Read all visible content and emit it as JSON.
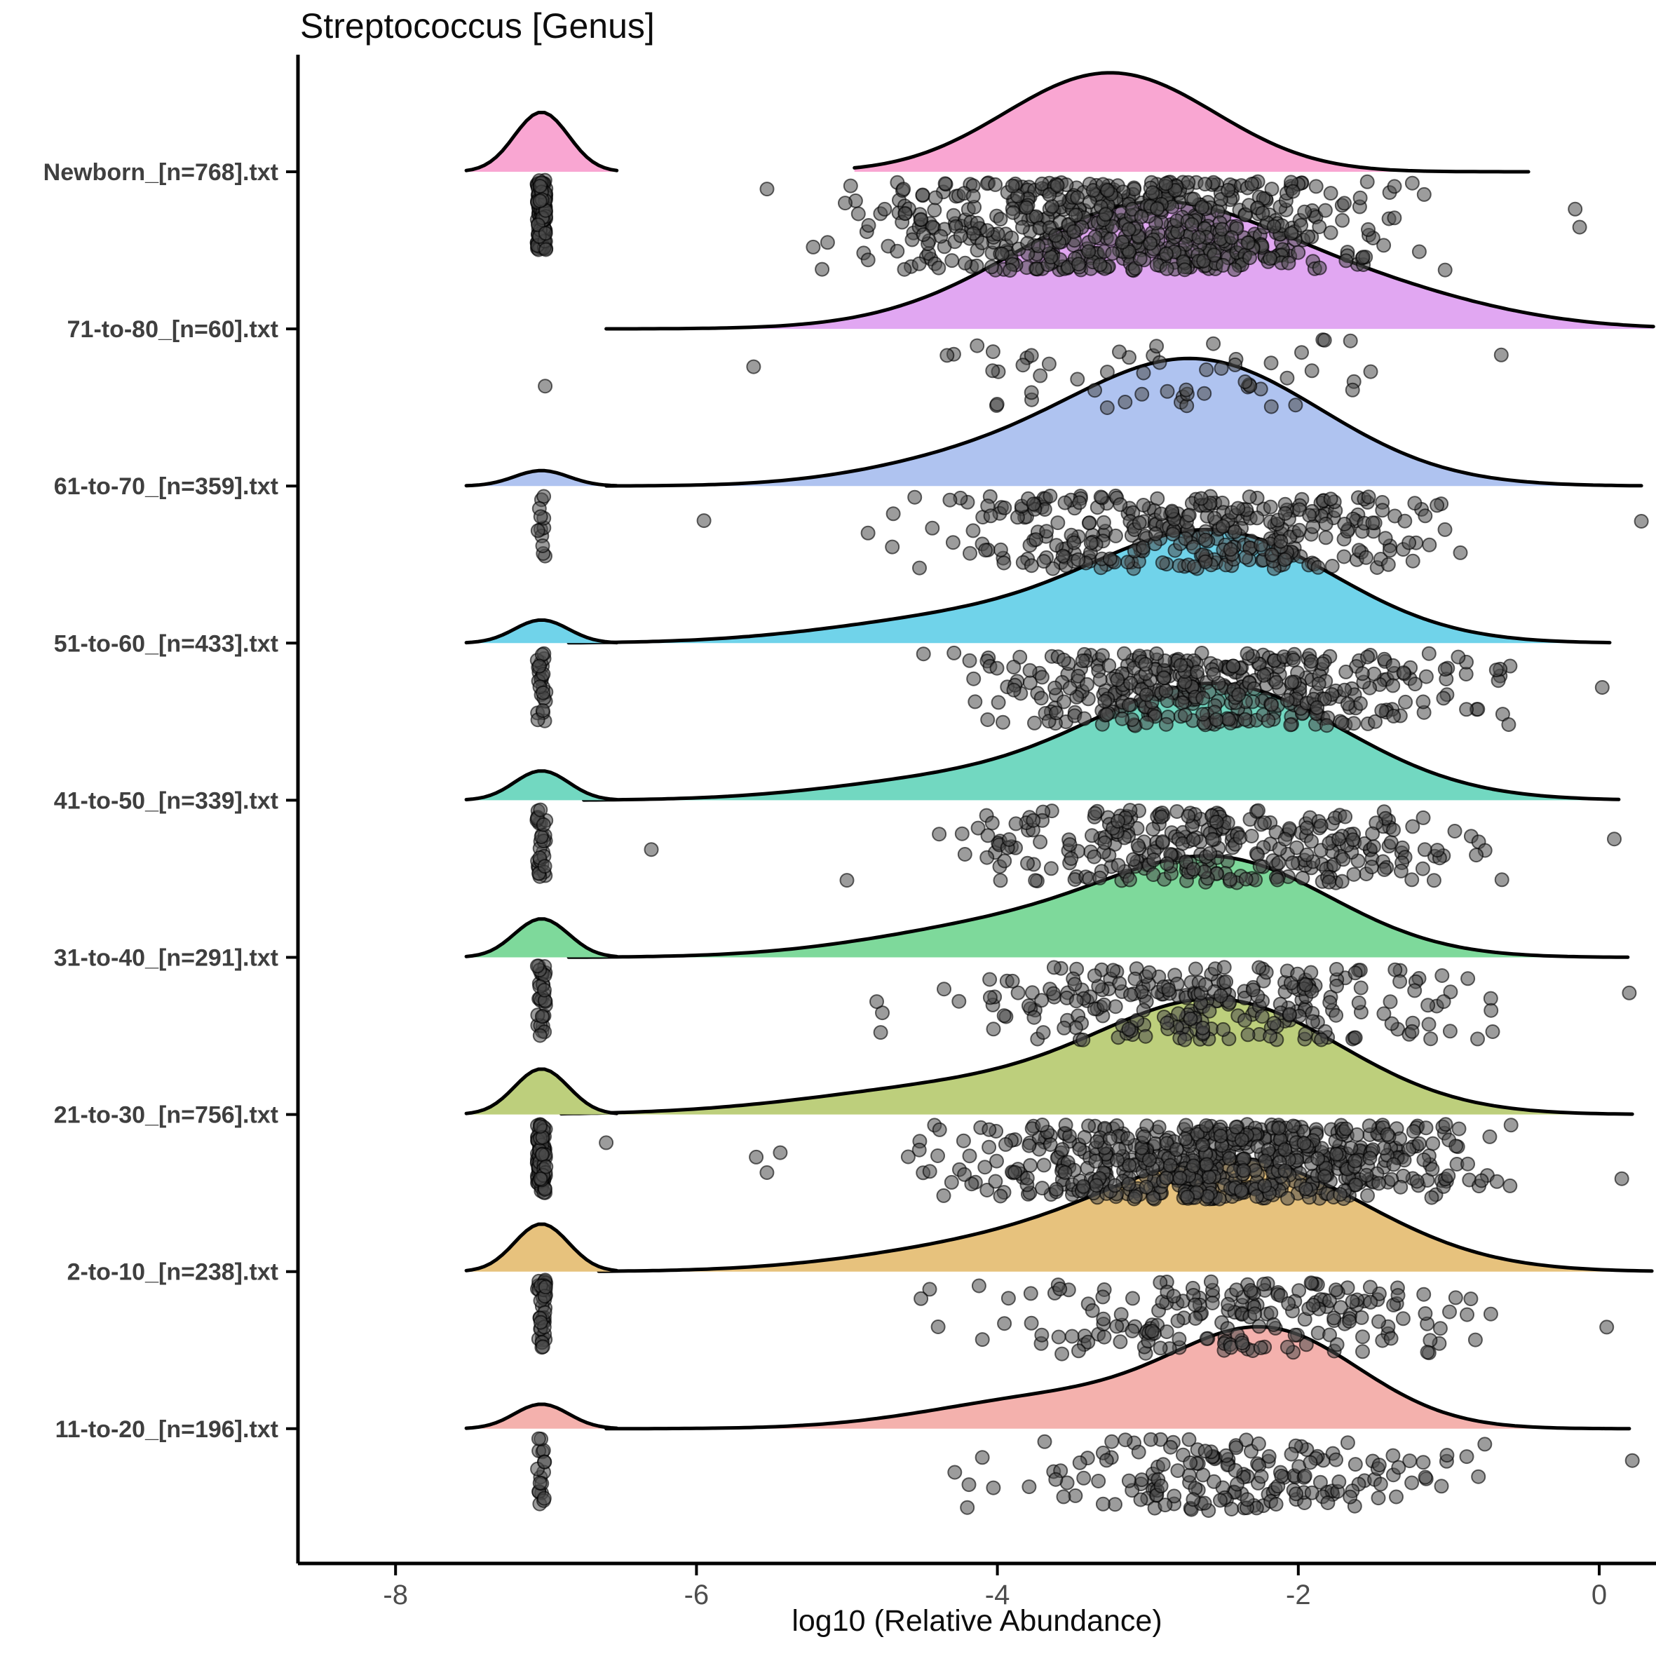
{
  "title": "Streptococcus [Genus]",
  "chart_data": {
    "type": "ridgeline",
    "title": "Streptococcus [Genus]",
    "xlabel": "log10 (Relative Abundance)",
    "x_ticks": [
      -8,
      -6,
      -4,
      -2,
      0
    ],
    "x_range": [
      -8.65,
      0.38
    ],
    "grid": false,
    "legend": "none",
    "outline_color": "#000000",
    "axis_color": "#000000",
    "tick_label_color": "#4d4d4d",
    "y_label_color": "#3f3f3f",
    "point_style": {
      "radius": 9.5,
      "fill": "#4a4a4a",
      "fill_opacity": 0.55,
      "stroke": "#000000",
      "stroke_opacity": 0.6,
      "stroke_width": 2
    },
    "categories": [
      "Newborn_[n=768].txt",
      "71-to-80_[n=60].txt",
      "61-to-70_[n=359].txt",
      "51-to-60_[n=433].txt",
      "41-to-50_[n=339].txt",
      "31-to-40_[n=291].txt",
      "21-to-30_[n=756].txt",
      "2-to-10_[n=238].txt",
      "11-to-20_[n=196].txt"
    ],
    "rows": [
      {
        "label": "Newborn_[n=768].txt",
        "n": 768,
        "color": "#F9A6D2",
        "density": {
          "range": [
            -4.95,
            -0.45
          ],
          "components": [
            {
              "mu": -3.55,
              "sd": 0.6,
              "h": 80
            },
            {
              "mu": -2.95,
              "sd": 0.6,
              "h": 80
            }
          ]
        },
        "zero_spike": {
          "center": -7.03,
          "sd": 0.18,
          "height": 85,
          "points": 130
        },
        "scatter": {
          "mu": -3.15,
          "sd": 0.85,
          "min": -5.95,
          "max": -0.8,
          "count": 636,
          "band": 145,
          "outliers": [
            -0.16,
            -0.13
          ]
        }
      },
      {
        "label": "71-to-80_[n=60].txt",
        "n": 60,
        "color": "#E1A7F2",
        "density": {
          "range": [
            -6.6,
            0.38
          ],
          "components": [
            {
              "mu": -3.0,
              "sd": 0.9,
              "h": 175
            },
            {
              "mu": -1.45,
              "sd": 0.8,
              "h": 40
            }
          ]
        },
        "zero_spike": {
          "center": -7.03,
          "sd": 0.18,
          "height": 0,
          "points": 1
        },
        "scatter": {
          "mu": -2.8,
          "sd": 0.85,
          "min": -4.9,
          "max": -0.5,
          "count": 57,
          "band": 120,
          "outliers": [
            -5.62
          ]
        }
      },
      {
        "label": "61-to-70_[n=359].txt",
        "n": 359,
        "color": "#AFC3F0",
        "density": {
          "range": [
            -6.6,
            0.3
          ],
          "components": [
            {
              "mu": -2.7,
              "sd": 0.85,
              "h": 180
            },
            {
              "mu": -4.3,
              "sd": 0.7,
              "h": 25
            }
          ]
        },
        "zero_spike": {
          "center": -7.03,
          "sd": 0.18,
          "height": 22,
          "points": 12
        },
        "scatter": {
          "mu": -2.65,
          "sd": 0.8,
          "min": -6.0,
          "max": -0.6,
          "count": 344,
          "band": 122,
          "outliers": [
            -5.95,
            0.28
          ]
        }
      },
      {
        "label": "51-to-60_[n=433].txt",
        "n": 433,
        "color": "#70D3EA",
        "density": {
          "range": [
            -6.85,
            0.1
          ],
          "components": [
            {
              "mu": -2.55,
              "sd": 0.8,
              "h": 155
            },
            {
              "mu": -4.2,
              "sd": 0.9,
              "h": 35
            }
          ]
        },
        "zero_spike": {
          "center": -7.03,
          "sd": 0.18,
          "height": 33,
          "points": 26
        },
        "scatter": {
          "mu": -2.55,
          "sd": 0.8,
          "min": -5.6,
          "max": -0.45,
          "count": 404,
          "band": 122,
          "outliers": [
            0.02
          ]
        }
      },
      {
        "label": "41-to-50_[n=339].txt",
        "n": 339,
        "color": "#72D8C1",
        "density": {
          "range": [
            -6.75,
            0.15
          ],
          "components": [
            {
              "mu": -2.55,
              "sd": 0.85,
              "h": 165
            },
            {
              "mu": -4.4,
              "sd": 0.8,
              "h": 25
            }
          ]
        },
        "zero_spike": {
          "center": -7.03,
          "sd": 0.18,
          "height": 42,
          "points": 30
        },
        "scatter": {
          "mu": -2.55,
          "sd": 0.85,
          "min": -5.7,
          "max": -0.55,
          "count": 306,
          "band": 122,
          "outliers": [
            -6.3,
            0.1
          ]
        }
      },
      {
        "label": "31-to-40_[n=291].txt",
        "n": 291,
        "color": "#7ED99B",
        "density": {
          "range": [
            -6.85,
            0.2
          ],
          "components": [
            {
              "mu": -2.5,
              "sd": 0.75,
              "h": 130
            },
            {
              "mu": -3.9,
              "sd": 0.9,
              "h": 45
            }
          ]
        },
        "zero_spike": {
          "center": -7.03,
          "sd": 0.18,
          "height": 55,
          "points": 32
        },
        "scatter": {
          "mu": -2.5,
          "sd": 0.8,
          "min": -5.9,
          "max": -0.7,
          "count": 256,
          "band": 122,
          "outliers": [
            0.2
          ]
        }
      },
      {
        "label": "21-to-30_[n=756].txt",
        "n": 756,
        "color": "#BDCF7C",
        "density": {
          "range": [
            -6.9,
            0.25
          ],
          "components": [
            {
              "mu": -2.5,
              "sd": 0.8,
              "h": 155
            },
            {
              "mu": -4.2,
              "sd": 1.0,
              "h": 40
            }
          ]
        },
        "zero_spike": {
          "center": -7.03,
          "sd": 0.18,
          "height": 65,
          "points": 85
        },
        "scatter": {
          "mu": -2.5,
          "sd": 0.85,
          "min": -6.3,
          "max": -0.55,
          "count": 666,
          "band": 125,
          "outliers": [
            -6.6,
            0.15
          ]
        }
      },
      {
        "label": "2-to-10_[n=238].txt",
        "n": 238,
        "color": "#E7C27D",
        "density": {
          "range": [
            -6.65,
            0.35
          ],
          "components": [
            {
              "mu": -2.4,
              "sd": 0.85,
              "h": 155
            },
            {
              "mu": -4.0,
              "sd": 0.9,
              "h": 35
            }
          ]
        },
        "zero_spike": {
          "center": -7.03,
          "sd": 0.18,
          "height": 68,
          "points": 40
        },
        "scatter": {
          "mu": -2.4,
          "sd": 0.8,
          "min": -4.9,
          "max": -0.6,
          "count": 196,
          "band": 122,
          "outliers": [
            0.05
          ]
        }
      },
      {
        "label": "11-to-20_[n=196].txt",
        "n": 196,
        "color": "#F4B1AD",
        "density": {
          "range": [
            -6.6,
            0.2
          ],
          "components": [
            {
              "mu": -2.2,
              "sd": 0.62,
              "h": 135
            },
            {
              "mu": -3.6,
              "sd": 0.8,
              "h": 45
            }
          ]
        },
        "zero_spike": {
          "center": -7.03,
          "sd": 0.18,
          "height": 35,
          "points": 18
        },
        "scatter": {
          "mu": -2.3,
          "sd": 0.75,
          "min": -4.6,
          "max": -0.75,
          "count": 176,
          "band": 122,
          "outliers": [
            0.22
          ]
        }
      }
    ]
  }
}
